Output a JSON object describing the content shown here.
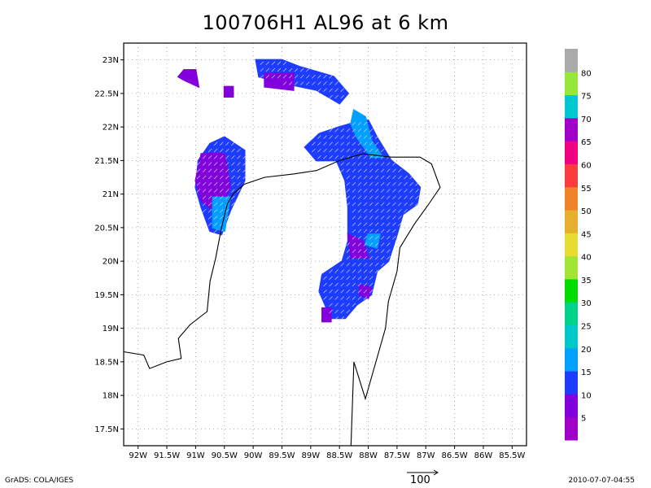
{
  "title": "100706H1 AL96 at 6 km",
  "map": {
    "lon_range": [
      -92.25,
      -85.25
    ],
    "lat_range": [
      17.25,
      23.25
    ],
    "x_ticks": [
      {
        "lon": -92.0,
        "label": "92W"
      },
      {
        "lon": -91.5,
        "label": "91.5W"
      },
      {
        "lon": -91.0,
        "label": "91W"
      },
      {
        "lon": -90.5,
        "label": "90.5W"
      },
      {
        "lon": -90.0,
        "label": "90W"
      },
      {
        "lon": -89.5,
        "label": "89.5W"
      },
      {
        "lon": -89.0,
        "label": "89W"
      },
      {
        "lon": -88.5,
        "label": "88.5W"
      },
      {
        "lon": -88.0,
        "label": "88W"
      },
      {
        "lon": -87.5,
        "label": "87.5W"
      },
      {
        "lon": -87.0,
        "label": "87W"
      },
      {
        "lon": -86.5,
        "label": "86.5W"
      },
      {
        "lon": -86.0,
        "label": "86W"
      },
      {
        "lon": -85.5,
        "label": "85.5W"
      }
    ],
    "y_ticks": [
      {
        "lat": 17.5,
        "label": "17.5N"
      },
      {
        "lat": 18.0,
        "label": "18N"
      },
      {
        "lat": 18.5,
        "label": "18.5N"
      },
      {
        "lat": 19.0,
        "label": "19N"
      },
      {
        "lat": 19.5,
        "label": "19.5N"
      },
      {
        "lat": 20.0,
        "label": "20N"
      },
      {
        "lat": 20.5,
        "label": "20.5N"
      },
      {
        "lat": 21.0,
        "label": "21N"
      },
      {
        "lat": 21.5,
        "label": "21.5N"
      },
      {
        "lat": 22.0,
        "label": "22N"
      },
      {
        "lat": 22.5,
        "label": "22.5N"
      },
      {
        "lat": 23.0,
        "label": "23N"
      }
    ],
    "grid": true
  },
  "colorbar": {
    "levels": [
      {
        "label": "",
        "color": "#a000c8"
      },
      {
        "label": "5",
        "color": "#8200dc"
      },
      {
        "label": "10",
        "color": "#1e3cff"
      },
      {
        "label": "15",
        "color": "#00a0ff"
      },
      {
        "label": "20",
        "color": "#00c8c8"
      },
      {
        "label": "25",
        "color": "#00d28c"
      },
      {
        "label": "30",
        "color": "#00dc00"
      },
      {
        "label": "35",
        "color": "#a0e632"
      },
      {
        "label": "40",
        "color": "#e6dc32"
      },
      {
        "label": "45",
        "color": "#e6af2d"
      },
      {
        "label": "50",
        "color": "#f08228"
      },
      {
        "label": "55",
        "color": "#fa3c3c"
      },
      {
        "label": "60",
        "color": "#f00082"
      },
      {
        "label": "65",
        "color": "#a000c8"
      },
      {
        "label": "70",
        "color": "#00c8d2"
      },
      {
        "label": "75",
        "color": "#96e63c"
      },
      {
        "label": "80",
        "color": "#aaaaaa"
      }
    ]
  },
  "regions": [
    {
      "color_level": "10",
      "polygon": [
        [
          -90.5,
          21.85
        ],
        [
          -90.15,
          21.65
        ],
        [
          -90.15,
          21.2
        ],
        [
          -90.4,
          20.75
        ],
        [
          -90.55,
          20.4
        ],
        [
          -90.75,
          20.45
        ],
        [
          -90.9,
          20.8
        ],
        [
          -91.0,
          21.1
        ],
        [
          -90.95,
          21.5
        ],
        [
          -90.75,
          21.75
        ]
      ]
    },
    {
      "color_level": "5",
      "polygon": [
        [
          -90.9,
          21.6
        ],
        [
          -90.5,
          21.6
        ],
        [
          -90.4,
          21.1
        ],
        [
          -90.6,
          20.7
        ],
        [
          -90.9,
          20.9
        ],
        [
          -91.0,
          21.2
        ]
      ]
    },
    {
      "color_level": "15",
      "polygon": [
        [
          -90.7,
          20.95
        ],
        [
          -90.4,
          20.95
        ],
        [
          -90.5,
          20.45
        ],
        [
          -90.7,
          20.5
        ]
      ]
    },
    {
      "color_level": "10",
      "polygon": [
        [
          -89.95,
          23.0
        ],
        [
          -89.5,
          23.0
        ],
        [
          -89.2,
          22.9
        ],
        [
          -88.6,
          22.75
        ],
        [
          -88.35,
          22.5
        ],
        [
          -88.5,
          22.35
        ],
        [
          -88.9,
          22.55
        ],
        [
          -89.45,
          22.65
        ],
        [
          -89.9,
          22.75
        ]
      ]
    },
    {
      "color_level": "5",
      "polygon": [
        [
          -89.8,
          22.8
        ],
        [
          -89.3,
          22.8
        ],
        [
          -89.3,
          22.55
        ],
        [
          -89.8,
          22.6
        ]
      ]
    },
    {
      "color_level": "5",
      "polygon": [
        [
          -91.2,
          22.85
        ],
        [
          -91.0,
          22.85
        ],
        [
          -90.95,
          22.6
        ],
        [
          -91.2,
          22.7
        ],
        [
          -91.3,
          22.75
        ]
      ]
    },
    {
      "color_level": "5",
      "polygon": [
        [
          -90.5,
          22.6
        ],
        [
          -90.35,
          22.6
        ],
        [
          -90.35,
          22.45
        ],
        [
          -90.5,
          22.45
        ]
      ]
    },
    {
      "color_level": "10",
      "polygon": [
        [
          -88.3,
          22.05
        ],
        [
          -88.0,
          22.1
        ],
        [
          -87.85,
          21.85
        ],
        [
          -87.6,
          21.5
        ],
        [
          -87.3,
          21.3
        ],
        [
          -87.1,
          21.1
        ],
        [
          -87.15,
          20.85
        ],
        [
          -87.4,
          20.7
        ],
        [
          -87.5,
          20.4
        ],
        [
          -87.65,
          20.0
        ],
        [
          -87.85,
          19.85
        ],
        [
          -87.95,
          19.5
        ],
        [
          -88.2,
          19.35
        ],
        [
          -88.4,
          19.15
        ],
        [
          -88.65,
          19.15
        ],
        [
          -88.85,
          19.55
        ],
        [
          -88.8,
          19.8
        ],
        [
          -88.45,
          20.0
        ],
        [
          -88.35,
          20.3
        ],
        [
          -88.35,
          20.8
        ],
        [
          -88.4,
          21.2
        ],
        [
          -88.55,
          21.5
        ],
        [
          -88.9,
          21.5
        ],
        [
          -89.1,
          21.7
        ],
        [
          -88.85,
          21.9
        ],
        [
          -88.5,
          22.0
        ]
      ]
    },
    {
      "color_level": "15",
      "polygon": [
        [
          -88.25,
          22.25
        ],
        [
          -88.05,
          22.15
        ],
        [
          -87.95,
          21.8
        ],
        [
          -87.75,
          21.55
        ],
        [
          -87.95,
          21.55
        ],
        [
          -88.2,
          21.85
        ],
        [
          -88.3,
          22.05
        ]
      ]
    },
    {
      "color_level": "15",
      "polygon": [
        [
          -88.0,
          20.4
        ],
        [
          -87.8,
          20.4
        ],
        [
          -87.85,
          20.2
        ],
        [
          -88.05,
          20.25
        ]
      ]
    },
    {
      "color_level": "5",
      "polygon": [
        [
          -88.35,
          20.4
        ],
        [
          -88.1,
          20.3
        ],
        [
          -88.0,
          20.05
        ],
        [
          -88.3,
          20.05
        ]
      ]
    },
    {
      "color_level": "5",
      "polygon": [
        [
          -88.15,
          19.65
        ],
        [
          -87.95,
          19.6
        ],
        [
          -88.0,
          19.45
        ],
        [
          -88.15,
          19.5
        ]
      ]
    },
    {
      "color_level": "5",
      "polygon": [
        [
          -88.8,
          19.3
        ],
        [
          -88.65,
          19.3
        ],
        [
          -88.65,
          19.1
        ],
        [
          -88.8,
          19.1
        ]
      ]
    }
  ],
  "coastline": [
    [
      [
        -92.25,
        18.65
      ],
      [
        -91.9,
        18.6
      ],
      [
        -91.8,
        18.4
      ],
      [
        -91.5,
        18.5
      ],
      [
        -91.25,
        18.55
      ],
      [
        -91.3,
        18.85
      ],
      [
        -91.1,
        19.05
      ],
      [
        -90.8,
        19.25
      ],
      [
        -90.75,
        19.7
      ],
      [
        -90.65,
        20.05
      ],
      [
        -90.55,
        20.5
      ],
      [
        -90.45,
        20.85
      ],
      [
        -90.35,
        21.0
      ],
      [
        -90.15,
        21.15
      ],
      [
        -89.8,
        21.25
      ],
      [
        -89.3,
        21.3
      ],
      [
        -88.9,
        21.35
      ],
      [
        -88.5,
        21.5
      ],
      [
        -88.1,
        21.6
      ],
      [
        -87.6,
        21.55
      ],
      [
        -87.1,
        21.55
      ],
      [
        -86.9,
        21.45
      ],
      [
        -86.75,
        21.1
      ],
      [
        -86.95,
        20.85
      ],
      [
        -87.2,
        20.55
      ],
      [
        -87.45,
        20.2
      ],
      [
        -87.5,
        19.85
      ],
      [
        -87.65,
        19.4
      ],
      [
        -87.7,
        19.0
      ],
      [
        -87.9,
        18.4
      ],
      [
        -88.05,
        17.95
      ],
      [
        -88.25,
        18.5
      ],
      [
        -88.3,
        17.25
      ]
    ]
  ],
  "vector_reference": {
    "label": "100"
  },
  "footer": {
    "left": "GrADS: COLA/IGES",
    "right": "2010-07-07-04:55"
  }
}
